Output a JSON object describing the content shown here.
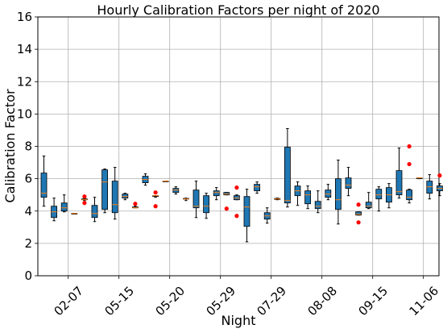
{
  "chart_data": {
    "type": "box",
    "title": "Hourly Calibration Factors per night of 2020",
    "xlabel": "Night",
    "ylabel": "Calibration Factor",
    "ylim": [
      0,
      16
    ],
    "yticks": [
      0,
      2,
      4,
      6,
      8,
      10,
      12,
      14,
      16
    ],
    "xtick_labels": [
      "02-07",
      "05-15",
      "05-20",
      "05-29",
      "07-29",
      "08-08",
      "09-15",
      "11-06"
    ],
    "grid": true,
    "box_color": "#1f77b4",
    "median_color": "#ff7f0e",
    "outlier_color": "#ff0000",
    "boxes": [
      {
        "min": 4.3,
        "q1": 4.85,
        "median": 5.1,
        "q3": 6.35,
        "max": 7.4,
        "outliers": []
      },
      {
        "min": 3.4,
        "q1": 3.6,
        "median": 3.95,
        "q3": 4.3,
        "max": 4.8,
        "outliers": []
      },
      {
        "min": 3.95,
        "q1": 4.0,
        "median": 4.2,
        "q3": 4.5,
        "max": 5.0,
        "outliers": []
      },
      {
        "min": 3.85,
        "q1": 3.85,
        "median": 3.85,
        "q3": 3.85,
        "max": 3.85,
        "outliers": []
      },
      {
        "min": 4.65,
        "q1": 4.7,
        "median": 4.7,
        "q3": 4.75,
        "max": 4.8,
        "outliers": [
          4.9,
          4.5
        ]
      },
      {
        "min": 3.35,
        "q1": 3.6,
        "median": 3.85,
        "q3": 4.35,
        "max": 4.85,
        "outliers": []
      },
      {
        "min": 3.9,
        "q1": 4.1,
        "median": 5.8,
        "q3": 6.55,
        "max": 6.6,
        "outliers": []
      },
      {
        "min": 3.5,
        "q1": 3.9,
        "median": 4.4,
        "q3": 5.85,
        "max": 6.7,
        "outliers": []
      },
      {
        "min": 4.7,
        "q1": 4.8,
        "median": 4.9,
        "q3": 5.05,
        "max": 5.1,
        "outliers": []
      },
      {
        "min": 4.2,
        "q1": 4.2,
        "median": 4.2,
        "q3": 4.25,
        "max": 4.3,
        "outliers": [
          4.45
        ]
      },
      {
        "min": 5.6,
        "q1": 5.75,
        "median": 5.95,
        "q3": 6.15,
        "max": 6.3,
        "outliers": []
      },
      {
        "min": 4.85,
        "q1": 4.9,
        "median": 4.95,
        "q3": 4.95,
        "max": 4.95,
        "outliers": [
          5.15,
          4.3
        ]
      },
      {
        "min": 5.85,
        "q1": 5.85,
        "median": 5.85,
        "q3": 5.85,
        "max": 5.85,
        "outliers": []
      },
      {
        "min": 5.05,
        "q1": 5.15,
        "median": 5.3,
        "q3": 5.4,
        "max": 5.5,
        "outliers": []
      },
      {
        "min": 4.65,
        "q1": 4.75,
        "median": 4.75,
        "q3": 4.78,
        "max": 4.8,
        "outliers": []
      },
      {
        "min": 3.6,
        "q1": 4.2,
        "median": 4.3,
        "q3": 5.3,
        "max": 5.85,
        "outliers": []
      },
      {
        "min": 3.55,
        "q1": 3.9,
        "median": 4.3,
        "q3": 4.95,
        "max": 5.1,
        "outliers": []
      },
      {
        "min": 4.7,
        "q1": 4.95,
        "median": 5.15,
        "q3": 5.25,
        "max": 5.45,
        "outliers": []
      },
      {
        "min": 5.0,
        "q1": 5.0,
        "median": 5.05,
        "q3": 5.15,
        "max": 5.15,
        "outliers": [
          4.15
        ]
      },
      {
        "min": 4.7,
        "q1": 4.7,
        "median": 4.8,
        "q3": 4.95,
        "max": 5.0,
        "outliers": [
          5.45,
          3.7
        ]
      },
      {
        "min": 2.1,
        "q1": 3.05,
        "median": 4.25,
        "q3": 4.9,
        "max": 5.35,
        "outliers": []
      },
      {
        "min": 5.1,
        "q1": 5.25,
        "median": 5.5,
        "q3": 5.65,
        "max": 5.8,
        "outliers": []
      },
      {
        "min": 3.25,
        "q1": 3.5,
        "median": 3.7,
        "q3": 3.9,
        "max": 4.2,
        "outliers": []
      },
      {
        "min": 4.7,
        "q1": 4.72,
        "median": 4.75,
        "q3": 4.78,
        "max": 4.8,
        "outliers": []
      },
      {
        "min": 4.25,
        "q1": 4.5,
        "median": 4.65,
        "q3": 7.95,
        "max": 9.1,
        "outliers": []
      },
      {
        "min": 4.35,
        "q1": 4.95,
        "median": 5.25,
        "q3": 5.55,
        "max": 5.8,
        "outliers": []
      },
      {
        "min": 4.15,
        "q1": 4.45,
        "median": 5.0,
        "q3": 5.25,
        "max": 5.55,
        "outliers": []
      },
      {
        "min": 3.9,
        "q1": 4.15,
        "median": 4.3,
        "q3": 4.6,
        "max": 5.25,
        "outliers": []
      },
      {
        "min": 4.7,
        "q1": 4.85,
        "median": 5.05,
        "q3": 5.3,
        "max": 5.65,
        "outliers": []
      },
      {
        "min": 3.2,
        "q1": 4.1,
        "median": 4.7,
        "q3": 6.0,
        "max": 7.15,
        "outliers": []
      },
      {
        "min": 4.95,
        "q1": 5.4,
        "median": 5.6,
        "q3": 6.05,
        "max": 6.7,
        "outliers": []
      },
      {
        "min": 3.75,
        "q1": 3.75,
        "median": 3.8,
        "q3": 3.95,
        "max": 3.95,
        "outliers": [
          4.4,
          3.3
        ]
      },
      {
        "min": 4.15,
        "q1": 4.2,
        "median": 4.3,
        "q3": 4.55,
        "max": 5.15,
        "outliers": []
      },
      {
        "min": 4.0,
        "q1": 4.75,
        "median": 5.0,
        "q3": 5.35,
        "max": 5.5,
        "outliers": []
      },
      {
        "min": 4.2,
        "q1": 4.55,
        "median": 5.0,
        "q3": 5.45,
        "max": 5.7,
        "outliers": []
      },
      {
        "min": 4.8,
        "q1": 5.0,
        "median": 5.2,
        "q3": 6.5,
        "max": 7.9,
        "outliers": []
      },
      {
        "min": 4.5,
        "q1": 4.7,
        "median": 4.85,
        "q3": 5.3,
        "max": 5.35,
        "outliers": [
          8.0,
          6.9
        ]
      },
      {
        "min": 6.0,
        "q1": 6.0,
        "median": 6.05,
        "q3": 6.05,
        "max": 6.05,
        "outliers": []
      },
      {
        "min": 4.75,
        "q1": 5.1,
        "median": 5.5,
        "q3": 5.85,
        "max": 6.25,
        "outliers": []
      },
      {
        "min": 4.95,
        "q1": 5.25,
        "median": 5.4,
        "q3": 5.55,
        "max": 5.7,
        "outliers": [
          6.2
        ]
      }
    ]
  }
}
